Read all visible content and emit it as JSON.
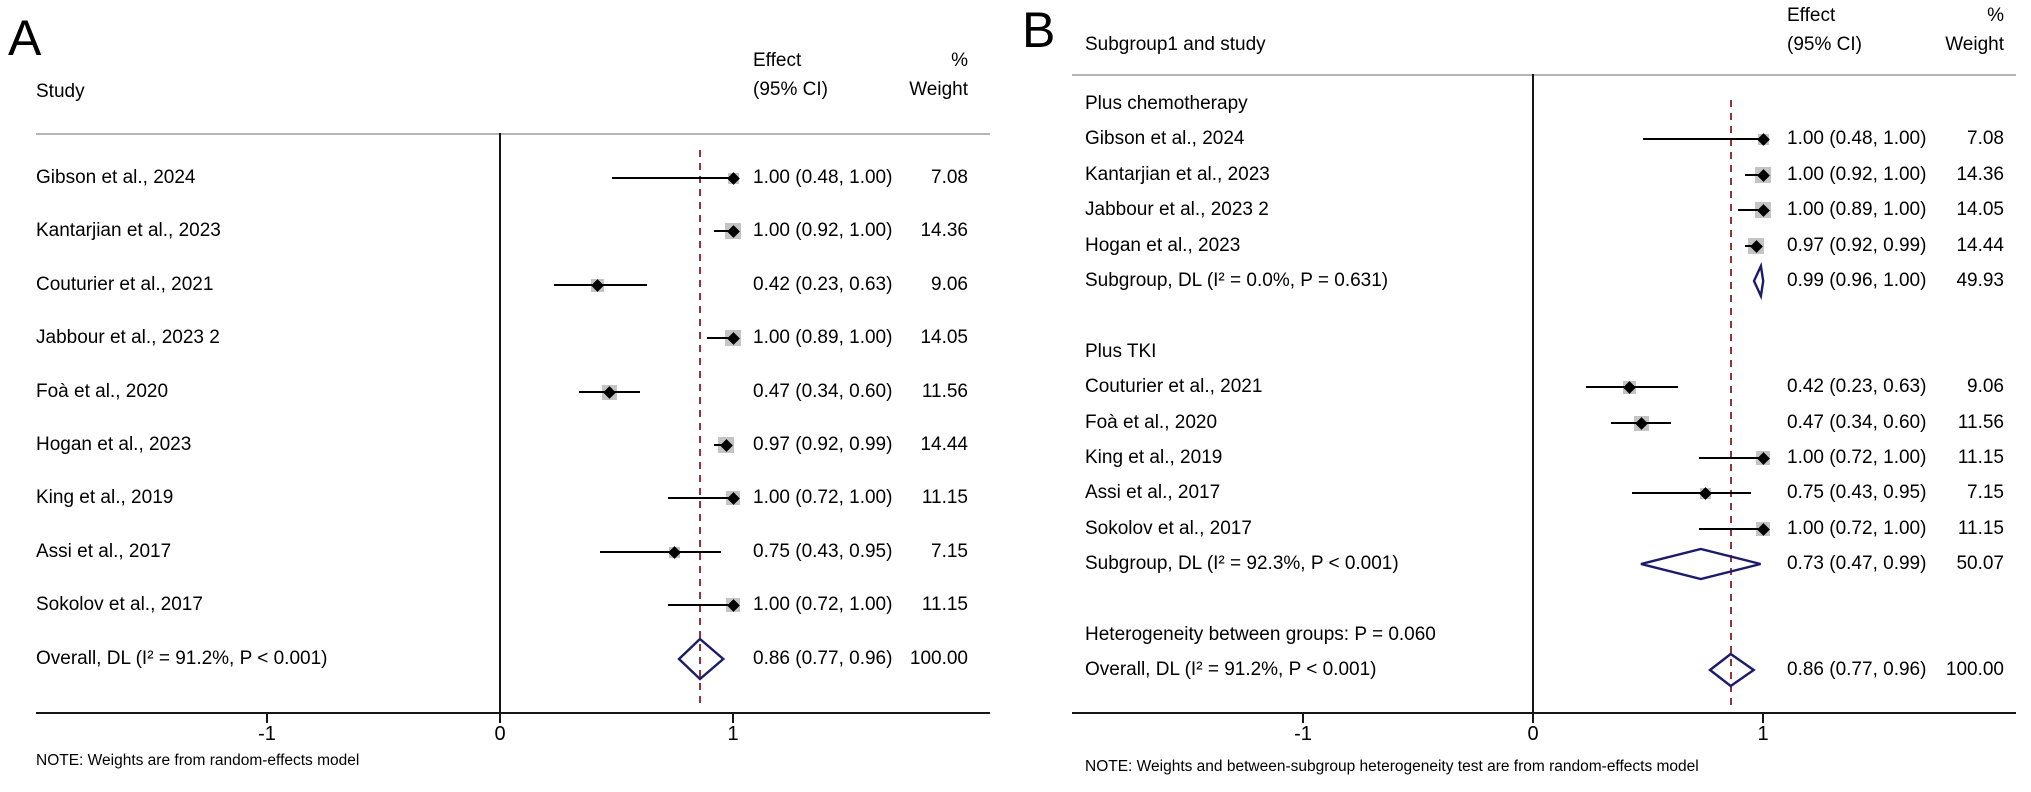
{
  "chart_data": [
    {
      "type": "forest",
      "panel_label": "A",
      "headers": {
        "study": "Study",
        "effect": [
          "Effect",
          "(95% CI)"
        ],
        "weight": [
          "%",
          "Weight"
        ]
      },
      "x_axis": {
        "ticks": [
          {
            "value": -1,
            "label": "-1"
          },
          {
            "value": 0,
            "label": "0"
          },
          {
            "value": 1,
            "label": "1"
          }
        ],
        "null_line": 0,
        "overall_reference": 0.86,
        "xlim": [
          -2,
          2
        ],
        "grid": false
      },
      "rows": [
        {
          "kind": "study",
          "label": "Gibson et al., 2024",
          "est": 1.0,
          "lo": 0.48,
          "hi": 1.0,
          "effect_label": "1.00 (0.48, 1.00)",
          "weight": 7.08,
          "weight_label": "7.08"
        },
        {
          "kind": "study",
          "label": "Kantarjian et al., 2023",
          "est": 1.0,
          "lo": 0.92,
          "hi": 1.0,
          "effect_label": "1.00 (0.92, 1.00)",
          "weight": 14.36,
          "weight_label": "14.36"
        },
        {
          "kind": "study",
          "label": "Couturier et al., 2021",
          "est": 0.42,
          "lo": 0.23,
          "hi": 0.63,
          "effect_label": "0.42 (0.23, 0.63)",
          "weight": 9.06,
          "weight_label": "9.06"
        },
        {
          "kind": "study",
          "label": "Jabbour et al., 2023 2",
          "est": 1.0,
          "lo": 0.89,
          "hi": 1.0,
          "effect_label": "1.00 (0.89, 1.00)",
          "weight": 14.05,
          "weight_label": "14.05"
        },
        {
          "kind": "study",
          "label": "Foà et al., 2020",
          "est": 0.47,
          "lo": 0.34,
          "hi": 0.6,
          "effect_label": "0.47 (0.34, 0.60)",
          "weight": 11.56,
          "weight_label": "11.56"
        },
        {
          "kind": "study",
          "label": "Hogan et al., 2023",
          "est": 0.97,
          "lo": 0.92,
          "hi": 0.99,
          "effect_label": "0.97 (0.92, 0.99)",
          "weight": 14.44,
          "weight_label": "14.44"
        },
        {
          "kind": "study",
          "label": "King et al., 2019",
          "est": 1.0,
          "lo": 0.72,
          "hi": 1.0,
          "effect_label": "1.00 (0.72, 1.00)",
          "weight": 11.15,
          "weight_label": "11.15"
        },
        {
          "kind": "study",
          "label": "Assi et al., 2017",
          "est": 0.75,
          "lo": 0.43,
          "hi": 0.95,
          "effect_label": "0.75 (0.43, 0.95)",
          "weight": 7.15,
          "weight_label": "7.15"
        },
        {
          "kind": "study",
          "label": "Sokolov et al., 2017",
          "est": 1.0,
          "lo": 0.72,
          "hi": 1.0,
          "effect_label": "1.00 (0.72, 1.00)",
          "weight": 11.15,
          "weight_label": "11.15"
        },
        {
          "kind": "overall",
          "label": "Overall, DL (I² = 91.2%, P < 0.001)",
          "est": 0.86,
          "lo": 0.77,
          "hi": 0.96,
          "effect_label": "0.86 (0.77, 0.96)",
          "weight_label": "100.00"
        }
      ],
      "note": "NOTE: Weights are from random-effects model"
    },
    {
      "type": "forest",
      "panel_label": "B",
      "headers": {
        "study": "Subgroup1 and study",
        "effect": [
          "Effect",
          "(95% CI)"
        ],
        "weight": [
          "%",
          "Weight"
        ]
      },
      "x_axis": {
        "ticks": [
          {
            "value": -1,
            "label": "-1"
          },
          {
            "value": 0,
            "label": "0"
          },
          {
            "value": 1,
            "label": "1"
          }
        ],
        "null_line": 0,
        "overall_reference": 0.86,
        "xlim": [
          -2,
          2
        ],
        "grid": false
      },
      "rows": [
        {
          "kind": "group",
          "label": "Plus chemotherapy"
        },
        {
          "kind": "study",
          "label": "Gibson et al., 2024",
          "est": 1.0,
          "lo": 0.48,
          "hi": 1.0,
          "effect_label": "1.00 (0.48, 1.00)",
          "weight": 7.08,
          "weight_label": "7.08"
        },
        {
          "kind": "study",
          "label": "Kantarjian et al., 2023",
          "est": 1.0,
          "lo": 0.92,
          "hi": 1.0,
          "effect_label": "1.00 (0.92, 1.00)",
          "weight": 14.36,
          "weight_label": "14.36"
        },
        {
          "kind": "study",
          "label": "Jabbour et al., 2023 2",
          "est": 1.0,
          "lo": 0.89,
          "hi": 1.0,
          "effect_label": "1.00 (0.89, 1.00)",
          "weight": 14.05,
          "weight_label": "14.05"
        },
        {
          "kind": "study",
          "label": "Hogan et al., 2023",
          "est": 0.97,
          "lo": 0.92,
          "hi": 0.99,
          "effect_label": "0.97 (0.92, 0.99)",
          "weight": 14.44,
          "weight_label": "14.44"
        },
        {
          "kind": "subgroup",
          "label": "Subgroup, DL (I² = 0.0%, P = 0.631)",
          "est": 0.99,
          "lo": 0.96,
          "hi": 1.0,
          "effect_label": "0.99 (0.96, 1.00)",
          "weight_label": "49.93"
        },
        {
          "kind": "spacer"
        },
        {
          "kind": "group",
          "label": "Plus TKI"
        },
        {
          "kind": "study",
          "label": "Couturier et al., 2021",
          "est": 0.42,
          "lo": 0.23,
          "hi": 0.63,
          "effect_label": "0.42 (0.23, 0.63)",
          "weight": 9.06,
          "weight_label": "9.06"
        },
        {
          "kind": "study",
          "label": "Foà et al., 2020",
          "est": 0.47,
          "lo": 0.34,
          "hi": 0.6,
          "effect_label": "0.47 (0.34, 0.60)",
          "weight": 11.56,
          "weight_label": "11.56"
        },
        {
          "kind": "study",
          "label": "King et al., 2019",
          "est": 1.0,
          "lo": 0.72,
          "hi": 1.0,
          "effect_label": "1.00 (0.72, 1.00)",
          "weight": 11.15,
          "weight_label": "11.15"
        },
        {
          "kind": "study",
          "label": "Assi et al., 2017",
          "est": 0.75,
          "lo": 0.43,
          "hi": 0.95,
          "effect_label": "0.75 (0.43, 0.95)",
          "weight": 7.15,
          "weight_label": "7.15"
        },
        {
          "kind": "study",
          "label": "Sokolov et al., 2017",
          "est": 1.0,
          "lo": 0.72,
          "hi": 1.0,
          "effect_label": "1.00 (0.72, 1.00)",
          "weight": 11.15,
          "weight_label": "11.15"
        },
        {
          "kind": "subgroup",
          "label": "Subgroup, DL (I² = 92.3%, P < 0.001)",
          "est": 0.73,
          "lo": 0.47,
          "hi": 0.99,
          "effect_label": "0.73 (0.47, 0.99)",
          "weight_label": "50.07"
        },
        {
          "kind": "spacer"
        },
        {
          "kind": "text",
          "label": "Heterogeneity between groups: P = 0.060"
        },
        {
          "kind": "overall",
          "label": "Overall, DL (I² = 91.2%, P < 0.001)",
          "est": 0.86,
          "lo": 0.77,
          "hi": 0.96,
          "effect_label": "0.86 (0.77, 0.96)",
          "weight_label": "100.00"
        }
      ],
      "note": "NOTE: Weights and between-subgroup heterogeneity test are from random-effects model"
    }
  ],
  "colors": {
    "diamond_outline": "#1b1b6b",
    "reference_dash": "#90353B",
    "weight_box": "#c4c4c4",
    "axis": "#161616",
    "header_rule": "#b5b5b5"
  }
}
